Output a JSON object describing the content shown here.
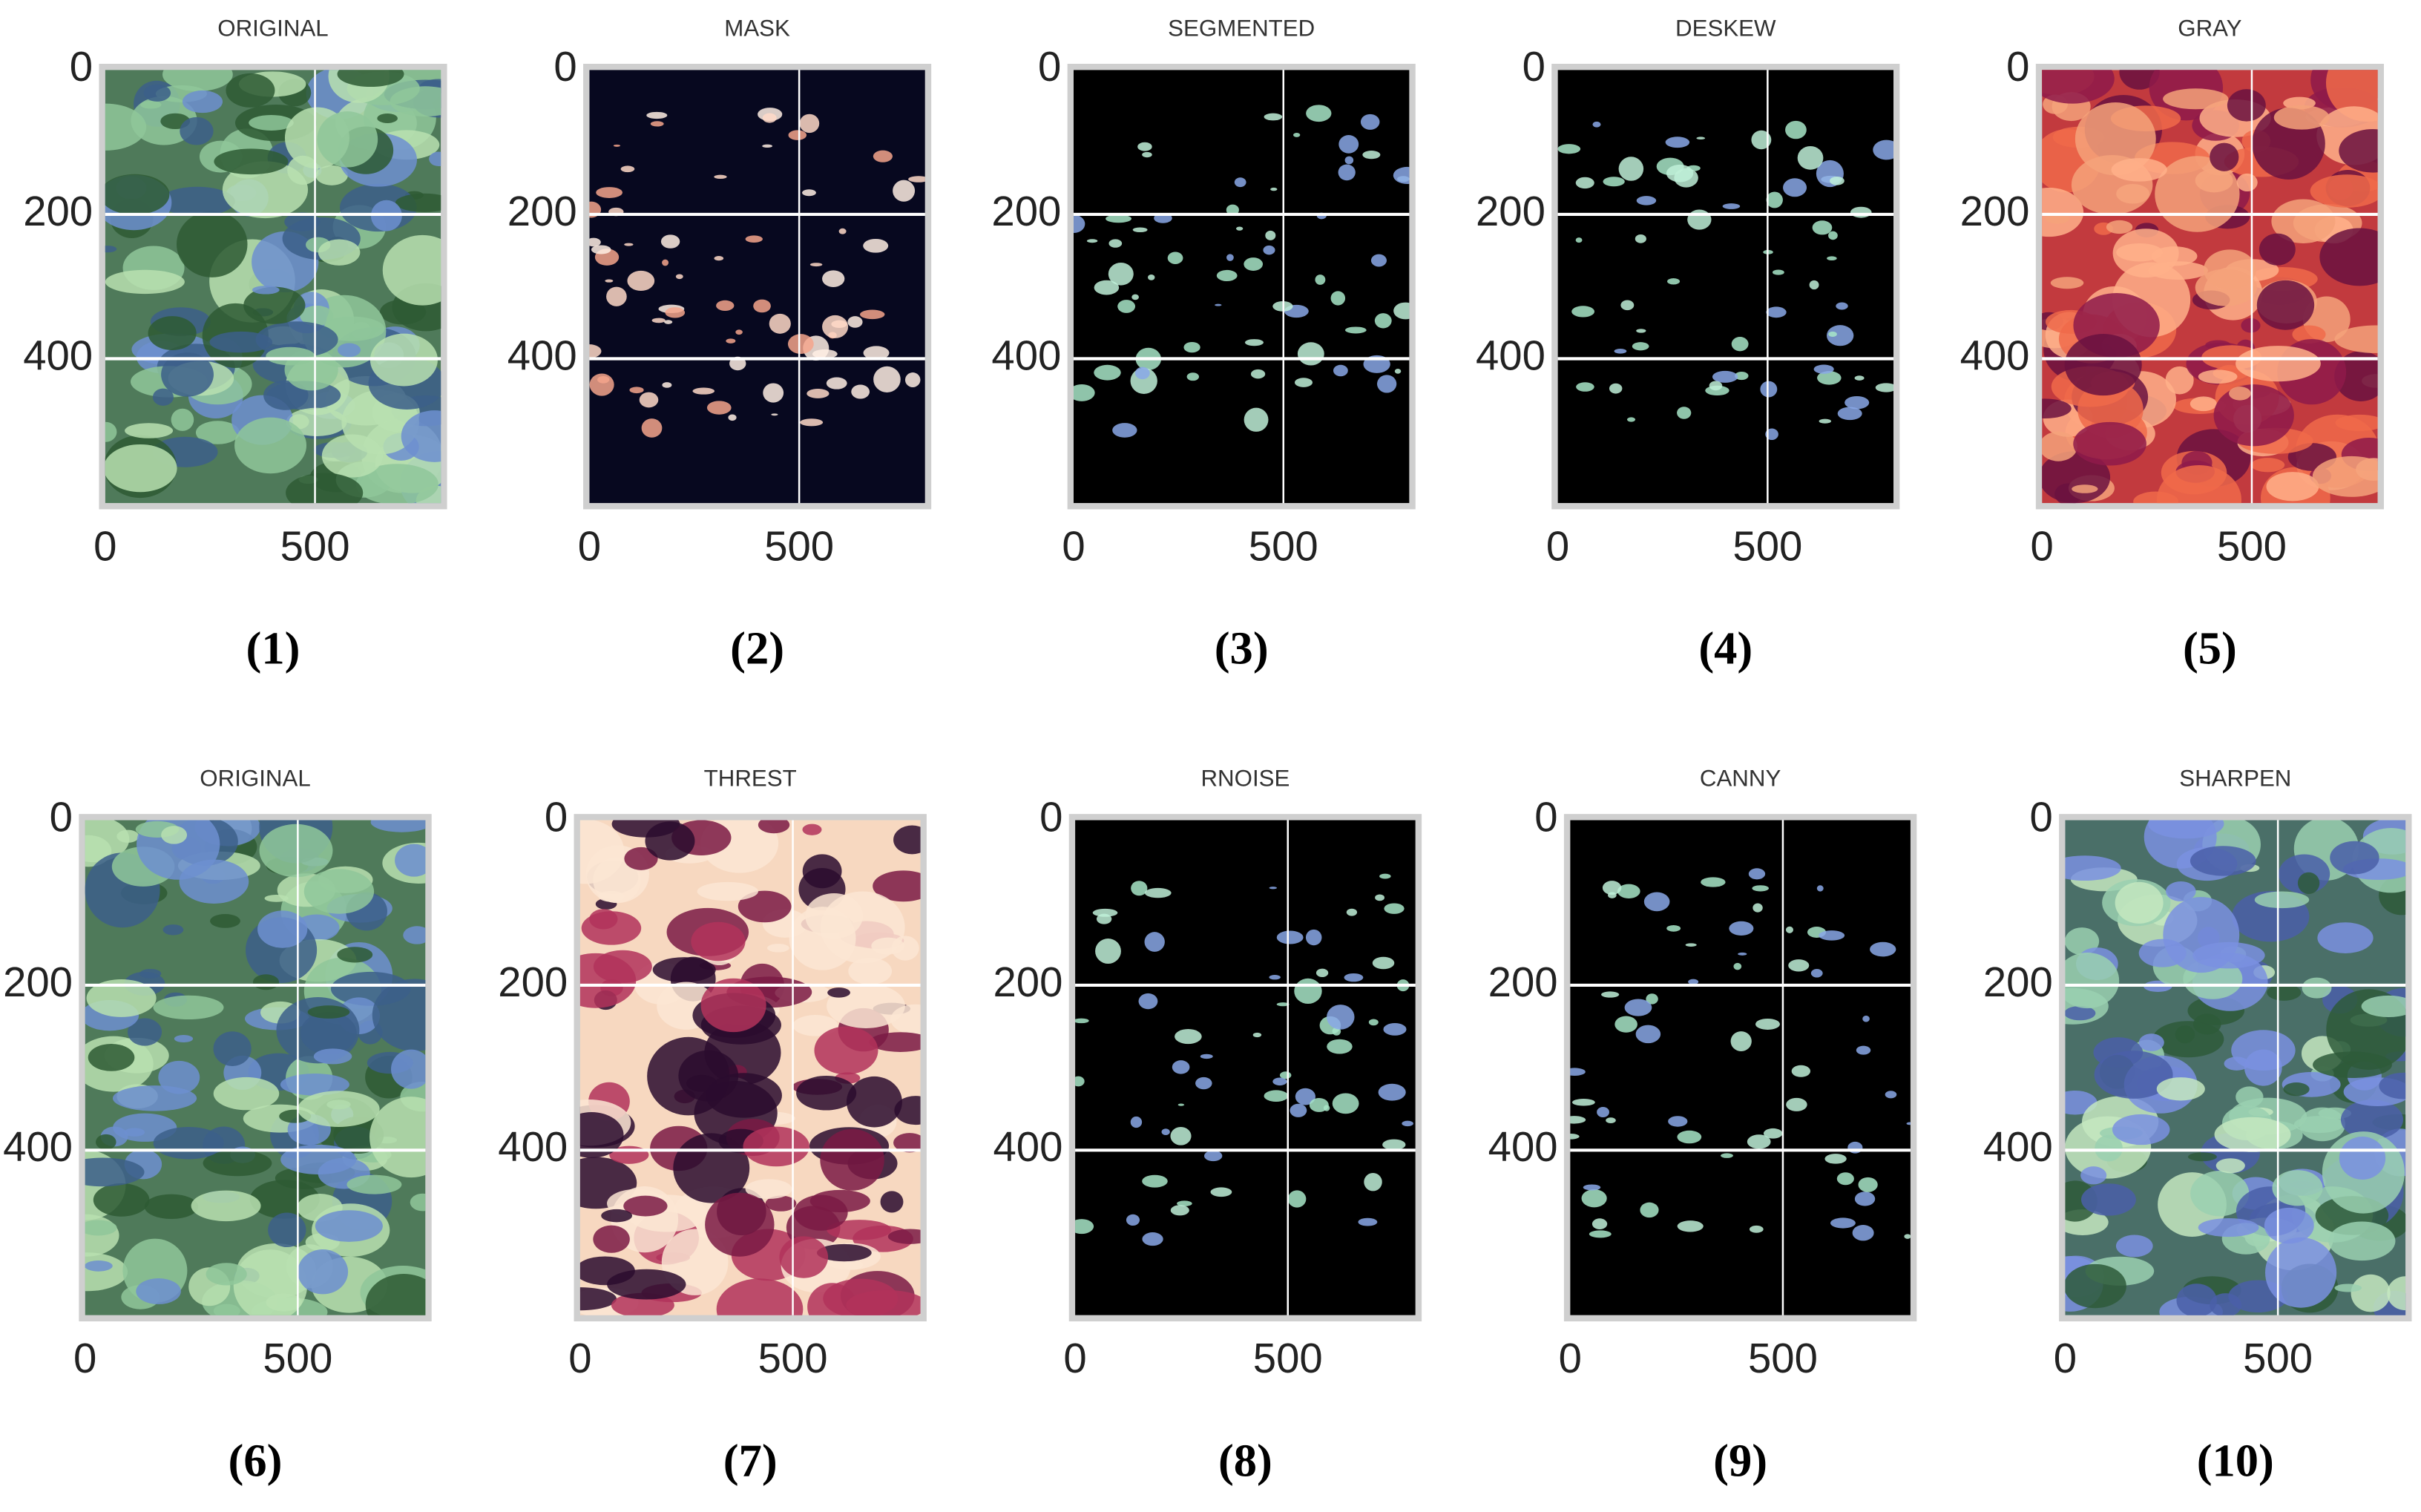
{
  "axes": {
    "xlim": [
      0,
      800
    ],
    "ylim": [
      0,
      600
    ],
    "xticks": [
      0,
      500
    ],
    "yticks": [
      0,
      200,
      400
    ],
    "grid": true
  },
  "panels": [
    {
      "title": "ORIGINAL",
      "caption": "(1)"
    },
    {
      "title": "MASK",
      "caption": "(2)"
    },
    {
      "title": "SEGMENTED",
      "caption": "(3)"
    },
    {
      "title": "DESKEW",
      "caption": "(4)"
    },
    {
      "title": "GRAY",
      "caption": "(5)"
    },
    {
      "title": "ORIGINAL",
      "caption": "(6)"
    },
    {
      "title": "THREST",
      "caption": "(7)"
    },
    {
      "title": "RNOISE",
      "caption": "(8)"
    },
    {
      "title": "CANNY",
      "caption": "(9)"
    },
    {
      "title": "SHARPEN",
      "caption": "(10)"
    }
  ]
}
